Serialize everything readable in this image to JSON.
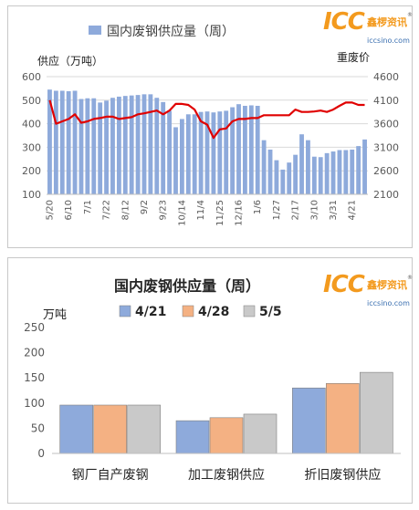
{
  "logo": {
    "mark": "ICC",
    "cn": "鑫椤资讯",
    "url": "iccsino.com",
    "reg": "®"
  },
  "chart_data": [
    {
      "type": "bar+line",
      "title": "国内废钢供应量（周）",
      "legend": [
        "国内废钢供应量（周）"
      ],
      "ylabel_left": "供应（万吨）",
      "ylabel_right": "重废价",
      "ylim_left": [
        100,
        600
      ],
      "yticks_left": [
        100,
        200,
        300,
        400,
        500,
        600
      ],
      "ylim_right": [
        2100,
        4600
      ],
      "yticks_right": [
        2100,
        2600,
        3100,
        3600,
        4100,
        4600
      ],
      "x_tick_labels": [
        "5/20",
        "6/10",
        "7/1",
        "7/22",
        "8/12",
        "9/2",
        "9/23",
        "10/14",
        "11/4",
        "11/25",
        "12/16",
        "1/6",
        "1/27",
        "2/17",
        "3/10",
        "3/31",
        "4/21"
      ],
      "x": [
        "5/20",
        "5/27",
        "6/3",
        "6/10",
        "6/17",
        "6/24",
        "7/1",
        "7/8",
        "7/15",
        "7/22",
        "7/29",
        "8/5",
        "8/12",
        "8/19",
        "8/26",
        "9/2",
        "9/9",
        "9/16",
        "9/23",
        "9/30",
        "10/7",
        "10/14",
        "10/21",
        "10/28",
        "11/4",
        "11/11",
        "11/18",
        "11/25",
        "12/2",
        "12/9",
        "12/16",
        "12/23",
        "12/30",
        "1/6",
        "1/13",
        "1/20",
        "1/27",
        "2/3",
        "2/10",
        "2/17",
        "2/24",
        "3/3",
        "3/10",
        "3/17",
        "3/24",
        "3/31",
        "4/7",
        "4/14",
        "4/21",
        "4/28",
        "5/5"
      ],
      "series": [
        {
          "name": "国内废钢供应量（周）",
          "kind": "bar",
          "color": "#8eaadb",
          "values": [
            545,
            540,
            540,
            538,
            540,
            505,
            508,
            508,
            490,
            498,
            510,
            515,
            518,
            520,
            522,
            525,
            525,
            510,
            492,
            455,
            385,
            420,
            440,
            440,
            450,
            452,
            448,
            452,
            455,
            470,
            483,
            476,
            478,
            476,
            330,
            290,
            245,
            205,
            235,
            268,
            355,
            330,
            260,
            258,
            275,
            282,
            288,
            288,
            290,
            305,
            333
          ]
        },
        {
          "name": "重废价",
          "kind": "line",
          "color": "#e00000",
          "values": [
            4100,
            3600,
            3650,
            3700,
            3800,
            3620,
            3650,
            3700,
            3720,
            3750,
            3750,
            3700,
            3720,
            3740,
            3800,
            3820,
            3850,
            3880,
            3800,
            3880,
            4020,
            4020,
            4000,
            3900,
            3650,
            3580,
            3300,
            3480,
            3500,
            3650,
            3700,
            3700,
            3720,
            3720,
            3780,
            3780,
            3780,
            3780,
            3780,
            3900,
            3850,
            3850,
            3860,
            3880,
            3850,
            3900,
            3980,
            4050,
            4050,
            4000,
            4000
          ]
        }
      ]
    },
    {
      "type": "bar",
      "title": "国内废钢供应量（周）",
      "ylabel": "万吨",
      "ylim": [
        0,
        250
      ],
      "yticks": [
        0,
        50,
        100,
        150,
        200,
        250
      ],
      "categories": [
        "钢厂自产废钢",
        "加工废钢供应",
        "折旧废钢供应"
      ],
      "series": [
        {
          "name": "4/21",
          "color": "#8eaadb",
          "values": [
            96,
            65,
            130
          ]
        },
        {
          "name": "4/28",
          "color": "#f4b183",
          "values": [
            96,
            71,
            139
          ]
        },
        {
          "name": "5/5",
          "color": "#c9c9c9",
          "values": [
            96,
            78,
            161
          ]
        }
      ]
    }
  ]
}
